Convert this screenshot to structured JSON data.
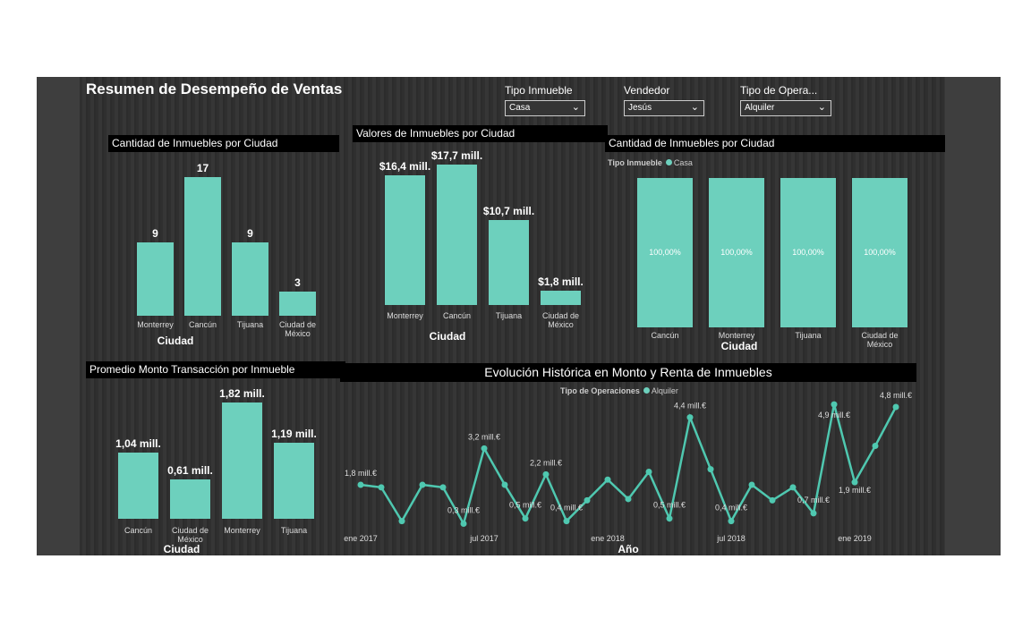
{
  "title": "Resumen de Desempeño de Ventas",
  "slicers": [
    {
      "label": "Tipo Inmueble",
      "value": "Casa"
    },
    {
      "label": "Vendedor",
      "value": "Jesús"
    },
    {
      "label": "Tipo de Opera...",
      "value": "Alquiler"
    }
  ],
  "accent": "#6dd0bd",
  "chart_data": [
    {
      "type": "bar",
      "title": "Cantidad de Inmuebles por Ciudad",
      "xlabel": "Ciudad",
      "categories": [
        "Monterrey",
        "Cancún",
        "Tijuana",
        "Ciudad de México"
      ],
      "values": [
        9,
        17,
        9,
        3
      ],
      "labels": [
        "9",
        "17",
        "9",
        "3"
      ]
    },
    {
      "type": "bar",
      "title": "Valores de Inmuebles por Ciudad",
      "xlabel": "Ciudad",
      "categories": [
        "Monterrey",
        "Cancún",
        "Tijuana",
        "Ciudad de México"
      ],
      "values": [
        16.4,
        17.7,
        10.7,
        1.8
      ],
      "labels": [
        "$16,4 mill.",
        "$17,7 mill.",
        "$10,7 mill.",
        "$1,8 mill."
      ]
    },
    {
      "type": "bar",
      "title": "Cantidad de Inmuebles por Ciudad",
      "xlabel": "Ciudad",
      "legend_title": "Tipo Inmueble",
      "legend": [
        "Casa"
      ],
      "categories": [
        "Cancún",
        "Monterrey",
        "Tijuana",
        "Ciudad de México"
      ],
      "values": [
        100,
        100,
        100,
        100
      ],
      "labels": [
        "100,00%",
        "100,00%",
        "100,00%",
        "100,00%"
      ]
    },
    {
      "type": "bar",
      "title": "Promedio Monto Transacción por Inmueble",
      "xlabel": "Ciudad",
      "categories": [
        "Cancún",
        "Ciudad de México",
        "Monterrey",
        "Tijuana"
      ],
      "values": [
        1.04,
        0.61,
        1.82,
        1.19
      ],
      "labels": [
        "1,04 mill.",
        "0,61 mill.",
        "1,82 mill.",
        "1,19 mill."
      ]
    },
    {
      "type": "line",
      "title": "Evolución Histórica en Monto y Renta de Inmuebles",
      "xlabel": "Año",
      "legend_title": "Tipo de Operaciones",
      "legend": [
        "Alquiler"
      ],
      "xticks": [
        {
          "i": 0,
          "label": "ene 2017"
        },
        {
          "i": 6,
          "label": "jul 2017"
        },
        {
          "i": 12,
          "label": "ene 2018"
        },
        {
          "i": 18,
          "label": "jul 2018"
        },
        {
          "i": 24,
          "label": "ene 2019"
        }
      ],
      "values": [
        1.8,
        1.7,
        0.4,
        1.8,
        1.7,
        0.3,
        3.2,
        1.8,
        0.5,
        2.2,
        0.4,
        1.2,
        2.0,
        1.25,
        2.3,
        0.5,
        4.4,
        2.4,
        0.4,
        1.8,
        1.2,
        1.7,
        0.7,
        4.9,
        1.9,
        3.3,
        4.8
      ],
      "point_labels": [
        {
          "i": 0,
          "label": "1,8 mill.€"
        },
        {
          "i": 5,
          "label": "0,3 mill.€"
        },
        {
          "i": 6,
          "label": "3,2 mill.€"
        },
        {
          "i": 8,
          "label": "0,5 mill.€"
        },
        {
          "i": 9,
          "label": "2,2 mill.€"
        },
        {
          "i": 10,
          "label": "0,4 mill.€"
        },
        {
          "i": 15,
          "label": "0,5 mill.€"
        },
        {
          "i": 16,
          "label": "4,4 mill.€"
        },
        {
          "i": 18,
          "label": "0,4 mill.€"
        },
        {
          "i": 22,
          "label": "0,7 mill.€"
        },
        {
          "i": 23,
          "label": "4,9 mill.€"
        },
        {
          "i": 24,
          "label": "1,9 mill.€"
        },
        {
          "i": 26,
          "label": "4,8 mill.€"
        }
      ]
    }
  ]
}
